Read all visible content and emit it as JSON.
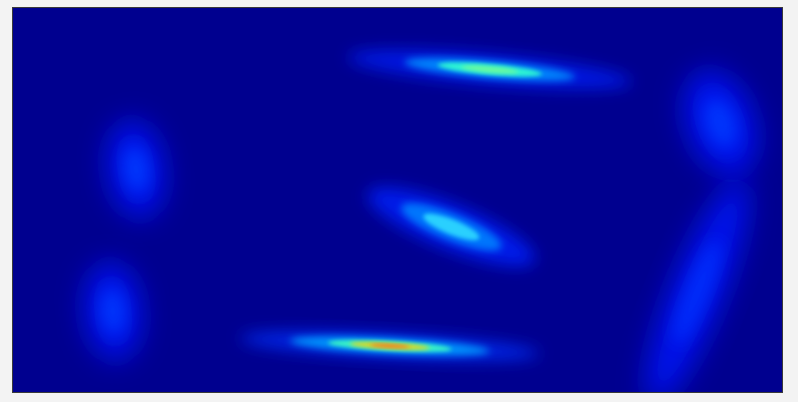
{
  "chart_data": {
    "type": "heatmap",
    "colormap": "jet",
    "background_color": "#00008f",
    "grid": false,
    "legend": "none",
    "title": "",
    "xlabel": "",
    "ylabel": "",
    "blobs": [
      {
        "id": "blob-top-center",
        "x": 0.62,
        "y": 0.16,
        "peak": 0.55
      },
      {
        "id": "blob-middle-center",
        "x": 0.57,
        "y": 0.57,
        "peak": 0.4
      },
      {
        "id": "blob-bottom-center",
        "x": 0.49,
        "y": 0.88,
        "peak": 1.0
      },
      {
        "id": "blob-left-upper",
        "x": 0.16,
        "y": 0.42,
        "peak": 0.25
      },
      {
        "id": "blob-left-lower",
        "x": 0.13,
        "y": 0.79,
        "peak": 0.25
      },
      {
        "id": "blob-right-upper",
        "x": 0.92,
        "y": 0.3,
        "peak": 0.25
      },
      {
        "id": "blob-right-arc",
        "x": 0.89,
        "y": 0.74,
        "peak": 0.22
      }
    ]
  }
}
